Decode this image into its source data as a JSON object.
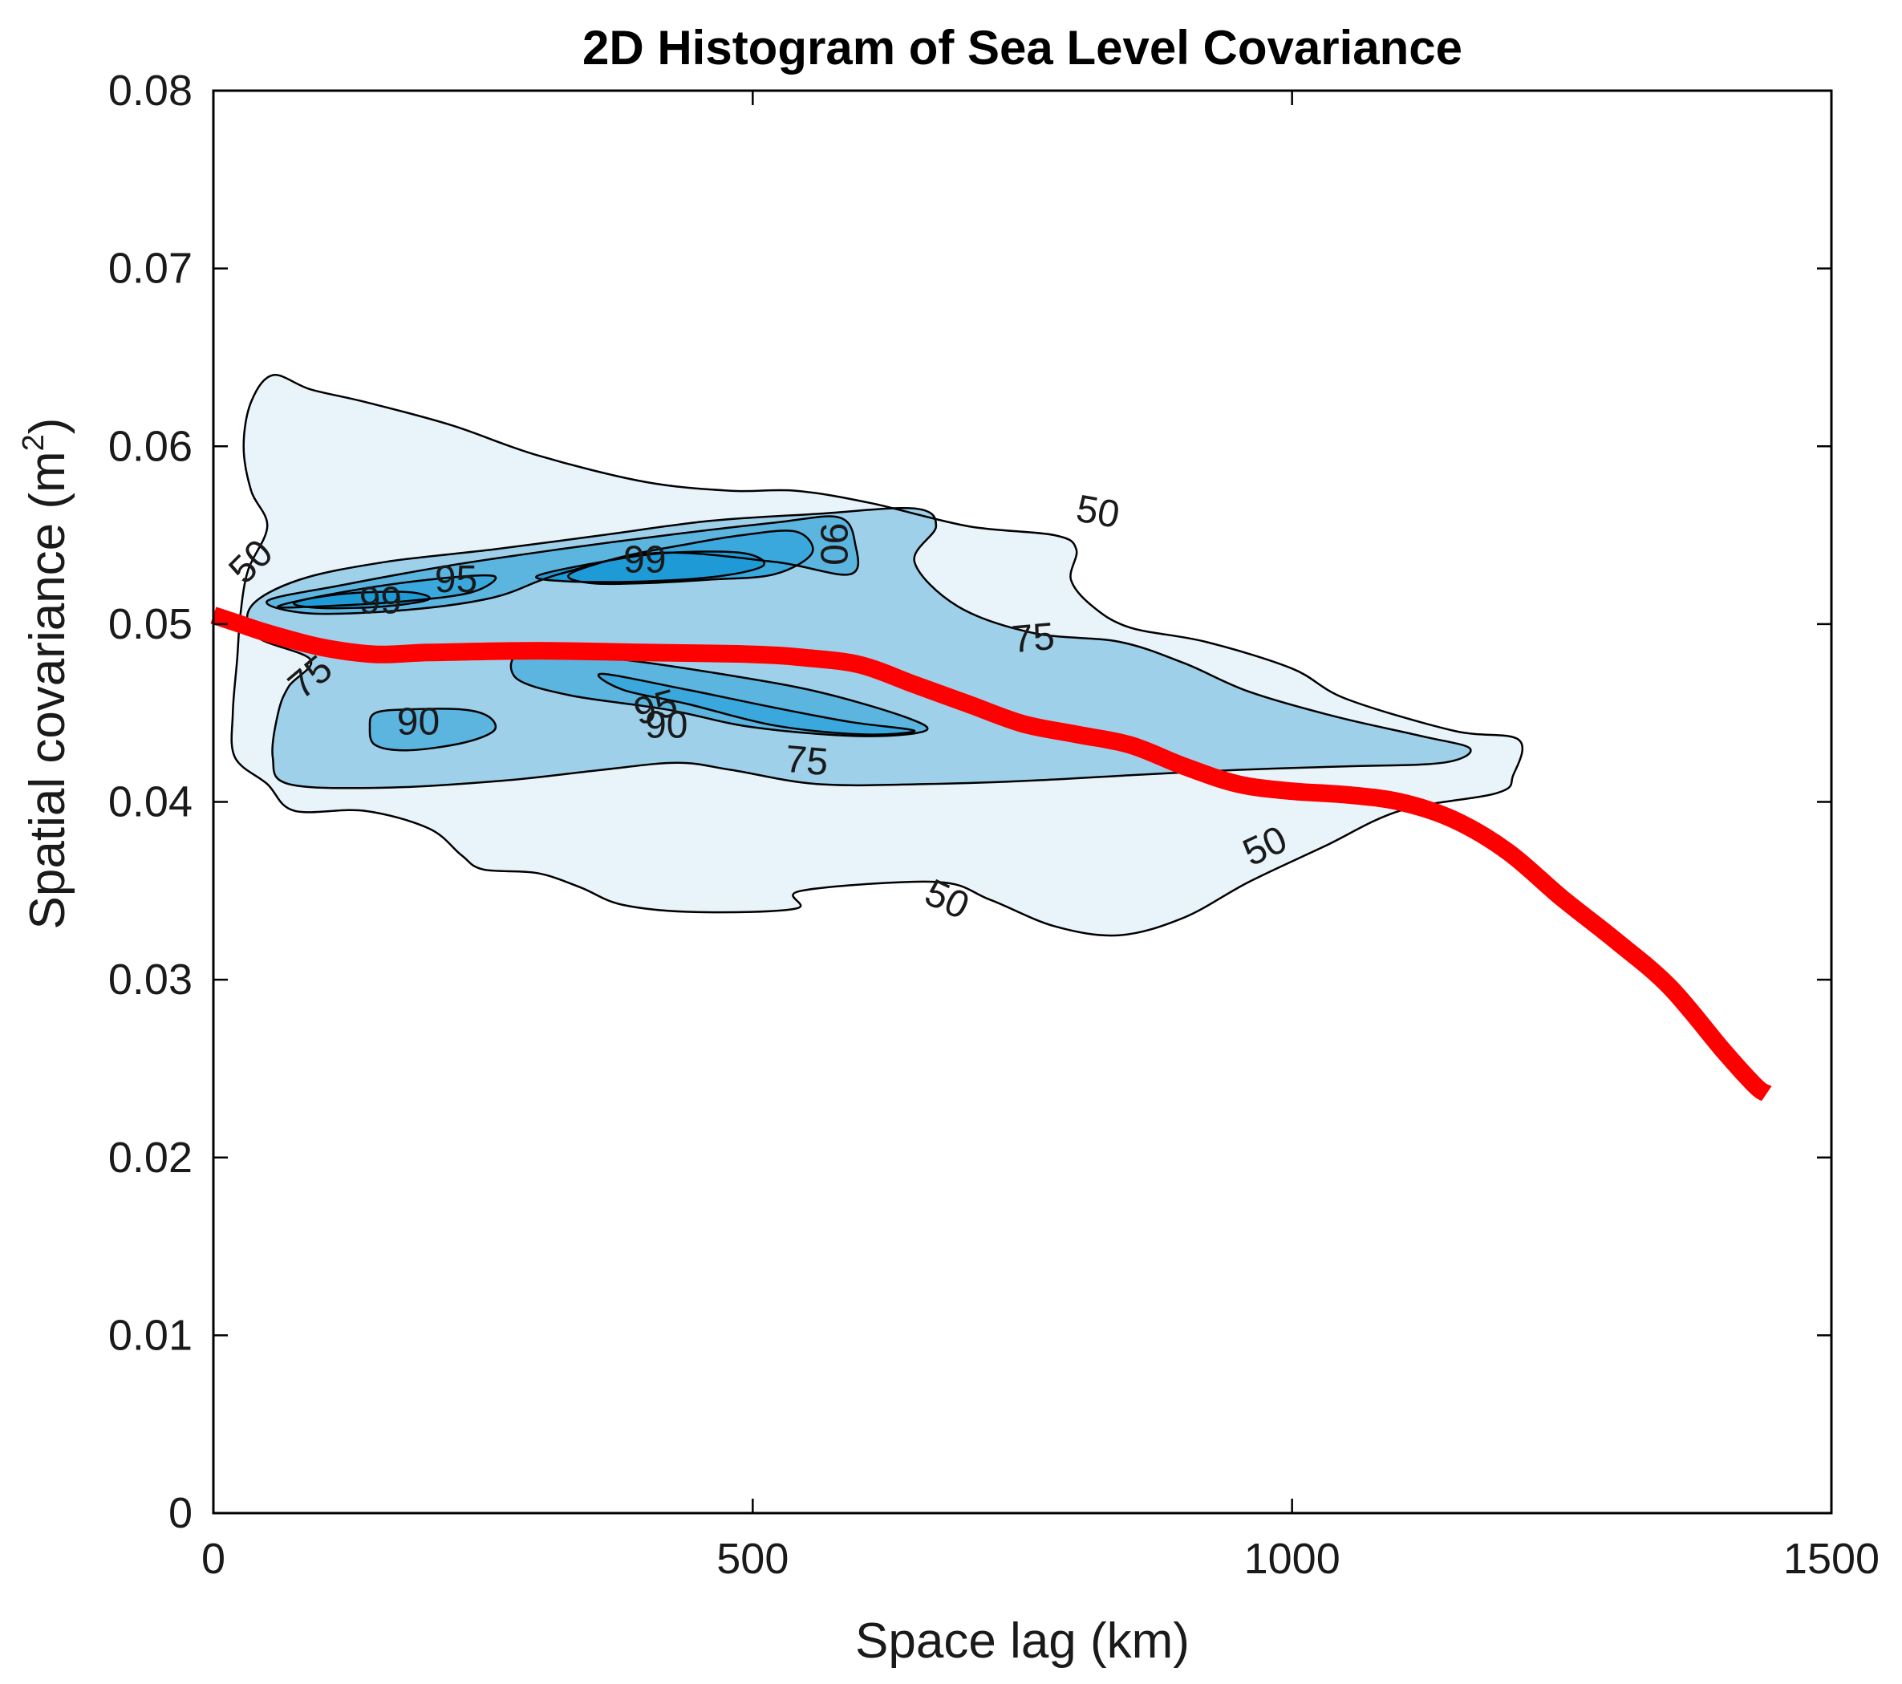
{
  "chart_data": {
    "type": "heatmap",
    "title": "2D Histogram of Sea Level Covariance",
    "xlabel": "Space lag (km)",
    "ylabel": "Spatial covariance (m",
    "ylabel_sup": "2",
    "ylabel_close": ")",
    "xlim": [
      0,
      1500
    ],
    "ylim": [
      0,
      0.08
    ],
    "xticks": [
      0,
      500,
      1000,
      1500
    ],
    "xtick_labels": [
      "0",
      "500",
      "1000",
      "1500"
    ],
    "yticks": [
      0,
      0.01,
      0.02,
      0.03,
      0.04,
      0.05,
      0.06,
      0.07,
      0.08
    ],
    "ytick_labels": [
      "0",
      "0.01",
      "0.02",
      "0.03",
      "0.04",
      "0.05",
      "0.06",
      "0.07",
      "0.08"
    ],
    "grid": false,
    "colors": {
      "level_50": "#e8f4fa",
      "level_75": "#9fd0ea",
      "level_90": "#5cb5df",
      "level_95": "#3aa8dc",
      "level_99": "#1e9bd7",
      "contour_line": "#000000",
      "curve": "#ff0000",
      "frame": "#000000"
    },
    "contours": [
      {
        "level": "50",
        "fill": "level_50",
        "points": [
          [
            25,
            0.0505
          ],
          [
            32,
            0.053
          ],
          [
            50,
            0.0555
          ],
          [
            35,
            0.0575
          ],
          [
            28,
            0.06
          ],
          [
            35,
            0.0625
          ],
          [
            55,
            0.064
          ],
          [
            90,
            0.0632
          ],
          [
            140,
            0.0625
          ],
          [
            220,
            0.0612
          ],
          [
            300,
            0.0595
          ],
          [
            400,
            0.058
          ],
          [
            480,
            0.0575
          ],
          [
            540,
            0.0575
          ],
          [
            610,
            0.0568
          ],
          [
            700,
            0.0555
          ],
          [
            780,
            0.055
          ],
          [
            800,
            0.0542
          ],
          [
            795,
            0.0525
          ],
          [
            815,
            0.051
          ],
          [
            850,
            0.0498
          ],
          [
            920,
            0.049
          ],
          [
            1000,
            0.0475
          ],
          [
            1050,
            0.0458
          ],
          [
            1150,
            0.044
          ],
          [
            1210,
            0.0435
          ],
          [
            1205,
            0.0415
          ],
          [
            1190,
            0.0405
          ],
          [
            1100,
            0.0395
          ],
          [
            1030,
            0.0375
          ],
          [
            960,
            0.0355
          ],
          [
            900,
            0.0335
          ],
          [
            840,
            0.0325
          ],
          [
            780,
            0.033
          ],
          [
            720,
            0.0345
          ],
          [
            670,
            0.0355
          ],
          [
            545,
            0.035
          ],
          [
            540,
            0.034
          ],
          [
            450,
            0.0338
          ],
          [
            380,
            0.0342
          ],
          [
            340,
            0.0352
          ],
          [
            300,
            0.036
          ],
          [
            250,
            0.0362
          ],
          [
            230,
            0.037
          ],
          [
            200,
            0.0385
          ],
          [
            140,
            0.0395
          ],
          [
            75,
            0.0395
          ],
          [
            50,
            0.041
          ],
          [
            20,
            0.0425
          ],
          [
            18,
            0.045
          ],
          [
            22,
            0.048
          ]
        ],
        "labels": [
          {
            "text": "50",
            "x": 35,
            "y": 0.0535,
            "angle": -45
          },
          {
            "text": "50",
            "x": 820,
            "y": 0.0563,
            "angle": 10
          },
          {
            "text": "50",
            "x": 975,
            "y": 0.0375,
            "angle": -25
          },
          {
            "text": "50",
            "x": 680,
            "y": 0.0345,
            "angle": 25
          }
        ]
      },
      {
        "level": "75",
        "fill": "level_75",
        "points": [
          [
            35,
            0.051
          ],
          [
            80,
            0.0525
          ],
          [
            160,
            0.0535
          ],
          [
            260,
            0.0542
          ],
          [
            360,
            0.055
          ],
          [
            460,
            0.0558
          ],
          [
            560,
            0.0562
          ],
          [
            650,
            0.0565
          ],
          [
            670,
            0.0555
          ],
          [
            650,
            0.0535
          ],
          [
            690,
            0.051
          ],
          [
            760,
            0.0495
          ],
          [
            840,
            0.049
          ],
          [
            900,
            0.0478
          ],
          [
            960,
            0.0462
          ],
          [
            1040,
            0.0448
          ],
          [
            1120,
            0.0437
          ],
          [
            1165,
            0.043
          ],
          [
            1140,
            0.0422
          ],
          [
            1050,
            0.042
          ],
          [
            950,
            0.0418
          ],
          [
            850,
            0.0415
          ],
          [
            760,
            0.0412
          ],
          [
            660,
            0.041
          ],
          [
            560,
            0.041
          ],
          [
            480,
            0.0418
          ],
          [
            430,
            0.0422
          ],
          [
            360,
            0.0418
          ],
          [
            270,
            0.0412
          ],
          [
            160,
            0.0408
          ],
          [
            70,
            0.041
          ],
          [
            55,
            0.0425
          ],
          [
            60,
            0.045
          ],
          [
            70,
            0.0465
          ],
          [
            90,
            0.048
          ],
          [
            40,
            0.0493
          ]
        ],
        "labels": [
          {
            "text": "75",
            "x": 760,
            "y": 0.0492,
            "angle": -5
          },
          {
            "text": "75",
            "x": 90,
            "y": 0.047,
            "angle": -40
          },
          {
            "text": "75",
            "x": 550,
            "y": 0.0423,
            "angle": 5
          }
        ]
      },
      {
        "level": "90",
        "fill": "level_90",
        "points": [
          [
            50,
            0.0513
          ],
          [
            120,
            0.0522
          ],
          [
            220,
            0.0533
          ],
          [
            320,
            0.0542
          ],
          [
            420,
            0.055
          ],
          [
            520,
            0.0557
          ],
          [
            580,
            0.056
          ],
          [
            595,
            0.0545
          ],
          [
            590,
            0.0528
          ],
          [
            520,
            0.0535
          ],
          [
            410,
            0.054
          ],
          [
            320,
            0.0528
          ],
          [
            260,
            0.0515
          ],
          [
            180,
            0.0508
          ],
          [
            90,
            0.0506
          ]
        ],
        "labels": [
          {
            "text": "90",
            "x": 575,
            "y": 0.0545,
            "angle": 90
          }
        ]
      },
      {
        "level": "90",
        "fill": "level_90",
        "points": [
          [
            290,
            0.0485
          ],
          [
            380,
            0.048
          ],
          [
            470,
            0.0472
          ],
          [
            560,
            0.0462
          ],
          [
            640,
            0.0448
          ],
          [
            660,
            0.044
          ],
          [
            600,
            0.0437
          ],
          [
            500,
            0.0442
          ],
          [
            420,
            0.0452
          ],
          [
            330,
            0.046
          ],
          [
            280,
            0.047
          ]
        ],
        "labels": [
          {
            "text": "90",
            "x": 420,
            "y": 0.0443,
            "angle": 0
          }
        ]
      },
      {
        "level": "90",
        "fill": "level_90",
        "points": [
          [
            150,
            0.045
          ],
          [
            180,
            0.0452
          ],
          [
            230,
            0.0452
          ],
          [
            255,
            0.0448
          ],
          [
            260,
            0.044
          ],
          [
            230,
            0.0433
          ],
          [
            180,
            0.0429
          ],
          [
            150,
            0.0432
          ],
          [
            145,
            0.0442
          ]
        ],
        "labels": [
          {
            "text": "90",
            "x": 190,
            "y": 0.0445,
            "angle": 0
          }
        ]
      },
      {
        "level": "95",
        "fill": "level_95",
        "points": [
          [
            60,
            0.051
          ],
          [
            120,
            0.0518
          ],
          [
            200,
            0.0525
          ],
          [
            260,
            0.0527
          ],
          [
            240,
            0.0518
          ],
          [
            180,
            0.0513
          ],
          [
            100,
            0.051
          ]
        ],
        "labels": [
          {
            "text": "95",
            "x": 225,
            "y": 0.0525,
            "angle": 0
          }
        ]
      },
      {
        "level": "95",
        "fill": "level_95",
        "points": [
          [
            330,
            0.0528
          ],
          [
            380,
            0.0538
          ],
          [
            440,
            0.0545
          ],
          [
            490,
            0.055
          ],
          [
            540,
            0.0552
          ],
          [
            555,
            0.054
          ],
          [
            520,
            0.0528
          ],
          [
            460,
            0.0525
          ],
          [
            400,
            0.0523
          ],
          [
            350,
            0.0523
          ]
        ],
        "labels": []
      },
      {
        "level": "95",
        "fill": "level_95",
        "points": [
          [
            360,
            0.0472
          ],
          [
            440,
            0.0463
          ],
          [
            520,
            0.0453
          ],
          [
            590,
            0.0445
          ],
          [
            650,
            0.044
          ],
          [
            600,
            0.0438
          ],
          [
            520,
            0.0443
          ],
          [
            440,
            0.0455
          ],
          [
            380,
            0.0463
          ]
        ],
        "labels": [
          {
            "text": "95",
            "x": 410,
            "y": 0.0453,
            "angle": -15
          }
        ]
      },
      {
        "level": "99",
        "fill": "level_99",
        "points": [
          [
            75,
            0.0512
          ],
          [
            120,
            0.0517
          ],
          [
            180,
            0.0518
          ],
          [
            200,
            0.0514
          ],
          [
            160,
            0.051
          ],
          [
            100,
            0.0509
          ]
        ],
        "labels": [
          {
            "text": "99",
            "x": 155,
            "y": 0.0513,
            "angle": 0
          }
        ]
      },
      {
        "level": "99",
        "fill": "level_99",
        "points": [
          [
            300,
            0.0527
          ],
          [
            360,
            0.0535
          ],
          [
            420,
            0.054
          ],
          [
            490,
            0.054
          ],
          [
            510,
            0.0533
          ],
          [
            470,
            0.0527
          ],
          [
            400,
            0.0524
          ],
          [
            330,
            0.0524
          ]
        ],
        "labels": [
          {
            "text": "99",
            "x": 400,
            "y": 0.0536,
            "angle": 0
          }
        ]
      }
    ],
    "series": [
      {
        "name": "covariance curve",
        "color": "curve",
        "x": [
          0,
          25,
          50,
          100,
          150,
          200,
          300,
          400,
          500,
          550,
          600,
          650,
          700,
          750,
          800,
          850,
          900,
          950,
          1000,
          1050,
          1100,
          1150,
          1200,
          1250,
          1300,
          1350,
          1400,
          1430,
          1440
        ],
        "y": [
          0.0505,
          0.05,
          0.0495,
          0.0487,
          0.0483,
          0.0484,
          0.0485,
          0.0484,
          0.0483,
          0.0481,
          0.0477,
          0.0466,
          0.0455,
          0.0444,
          0.0438,
          0.0432,
          0.042,
          0.041,
          0.0406,
          0.0404,
          0.04,
          0.039,
          0.0372,
          0.0346,
          0.0322,
          0.0296,
          0.026,
          0.024,
          0.0236
        ]
      }
    ]
  }
}
